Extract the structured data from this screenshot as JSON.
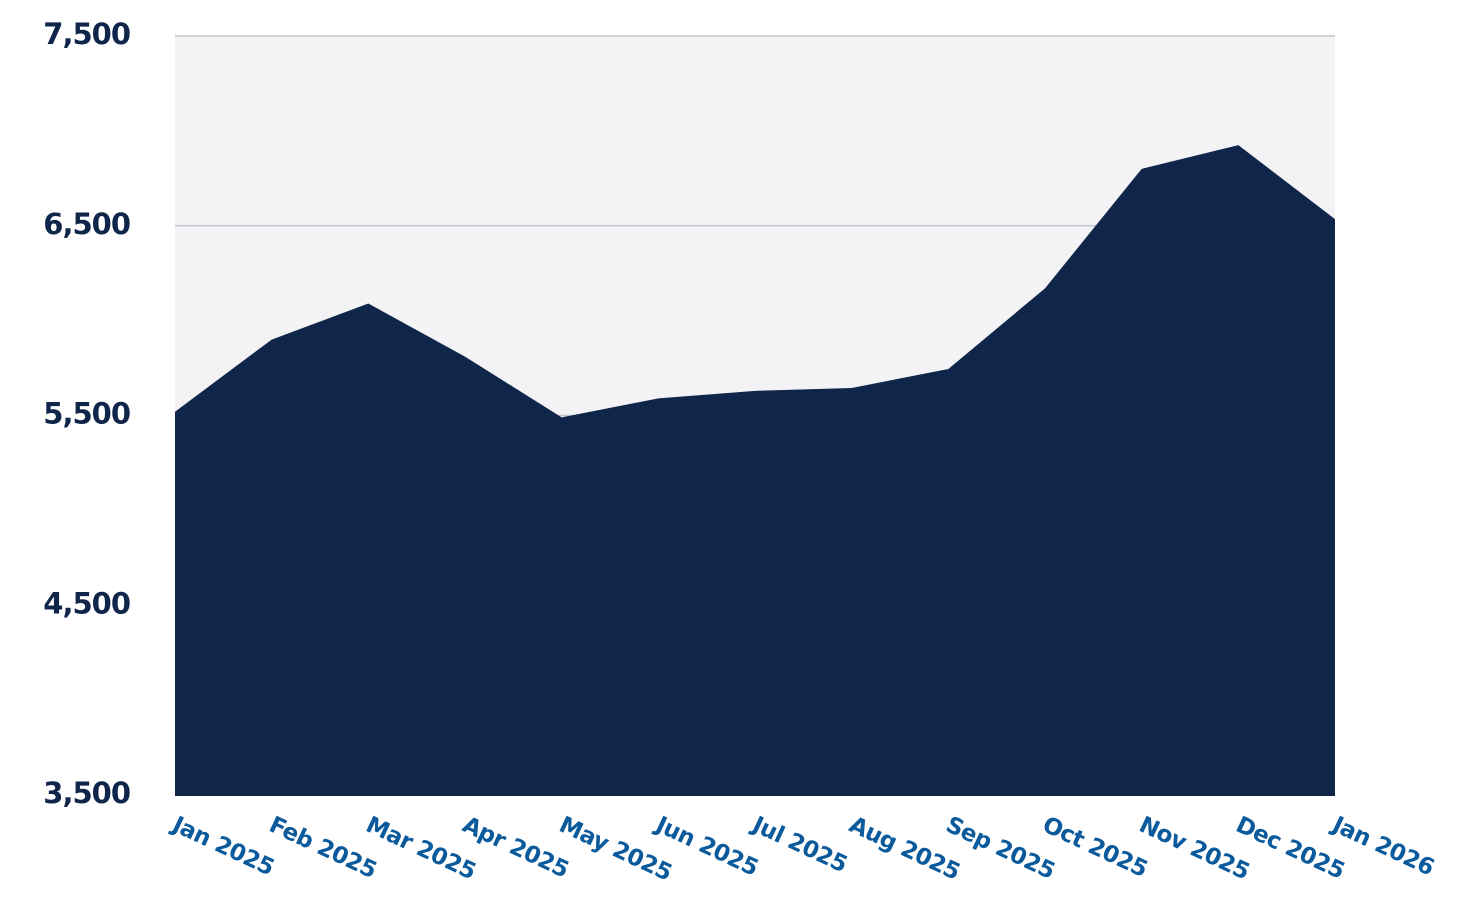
{
  "chart_data": {
    "type": "area",
    "categories": [
      "Jan 2025",
      "Feb 2025",
      "Mar 2025",
      "Apr 2025",
      "May 2025",
      "Jun 2025",
      "Jul 2025",
      "Aug 2025",
      "Sep 2025",
      "Oct 2025",
      "Nov 2025",
      "Dec 2025",
      "Jan 2026"
    ],
    "values": [
      5520,
      5900,
      6090,
      5810,
      5490,
      5590,
      5630,
      5645,
      5745,
      6170,
      6800,
      6925,
      6535
    ],
    "color": "#0f2549",
    "ylim": [
      3500,
      7500
    ],
    "yticks": [
      {
        "value": 3500,
        "label": "3,500"
      },
      {
        "value": 4500,
        "label": "4,500"
      },
      {
        "value": 5500,
        "label": "5,500"
      },
      {
        "value": 6500,
        "label": "6,500"
      },
      {
        "value": 7500,
        "label": "7,500"
      }
    ],
    "grid": true
  }
}
